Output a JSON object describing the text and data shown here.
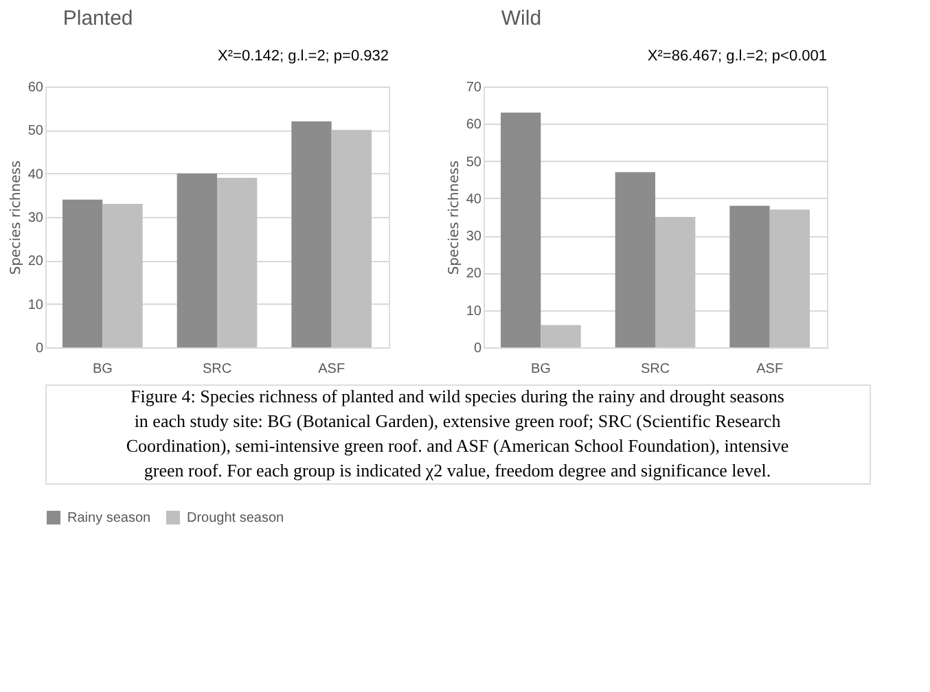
{
  "chart_data": [
    {
      "type": "bar",
      "title": "Planted",
      "ylabel": "Species richness",
      "categories": [
        "BG",
        "SRC",
        "ASF"
      ],
      "series": [
        {
          "name": "Rainy season",
          "color": "#8c8c8c",
          "values": [
            34,
            40,
            52
          ]
        },
        {
          "name": "Drought season",
          "color": "#bfbfbf",
          "values": [
            33,
            39,
            50
          ]
        }
      ],
      "ylim": [
        0,
        60
      ],
      "yticks": [
        0,
        10,
        20,
        30,
        40,
        50,
        60
      ],
      "grid": "y",
      "legend": "bottom",
      "annotations": [
        "X²=0.142; g.l.=2; p=0.932",
        "Figure 4: Species richness of planted and wild species during the rainy and drought seasons in each study site: BG (Botanical Garden), extensive green roof; SRC (Scientific Research Coordination), semi-intensive green roof. and ASF (American School Foundation), intensive green roof. For each group is indicated χ2 value, freedom degree and significance level."
      ]
    },
    {
      "type": "bar",
      "title": "Wild",
      "ylabel": "Species richness",
      "categories": [
        "BG",
        "SRC",
        "ASF"
      ],
      "series": [
        {
          "name": "Rainy season",
          "color": "#8c8c8c",
          "values": [
            63,
            47,
            38
          ]
        },
        {
          "name": "Drought season",
          "color": "#bfbfbf",
          "values": [
            6,
            35,
            37
          ]
        }
      ],
      "ylim": [
        0,
        70
      ],
      "yticks": [
        0,
        10,
        20,
        30,
        40,
        50,
        60,
        70
      ],
      "grid": "y",
      "legend": "bottom",
      "annotations": [
        "X²=86.467; g.l.=2; p<0.001"
      ]
    }
  ]
}
